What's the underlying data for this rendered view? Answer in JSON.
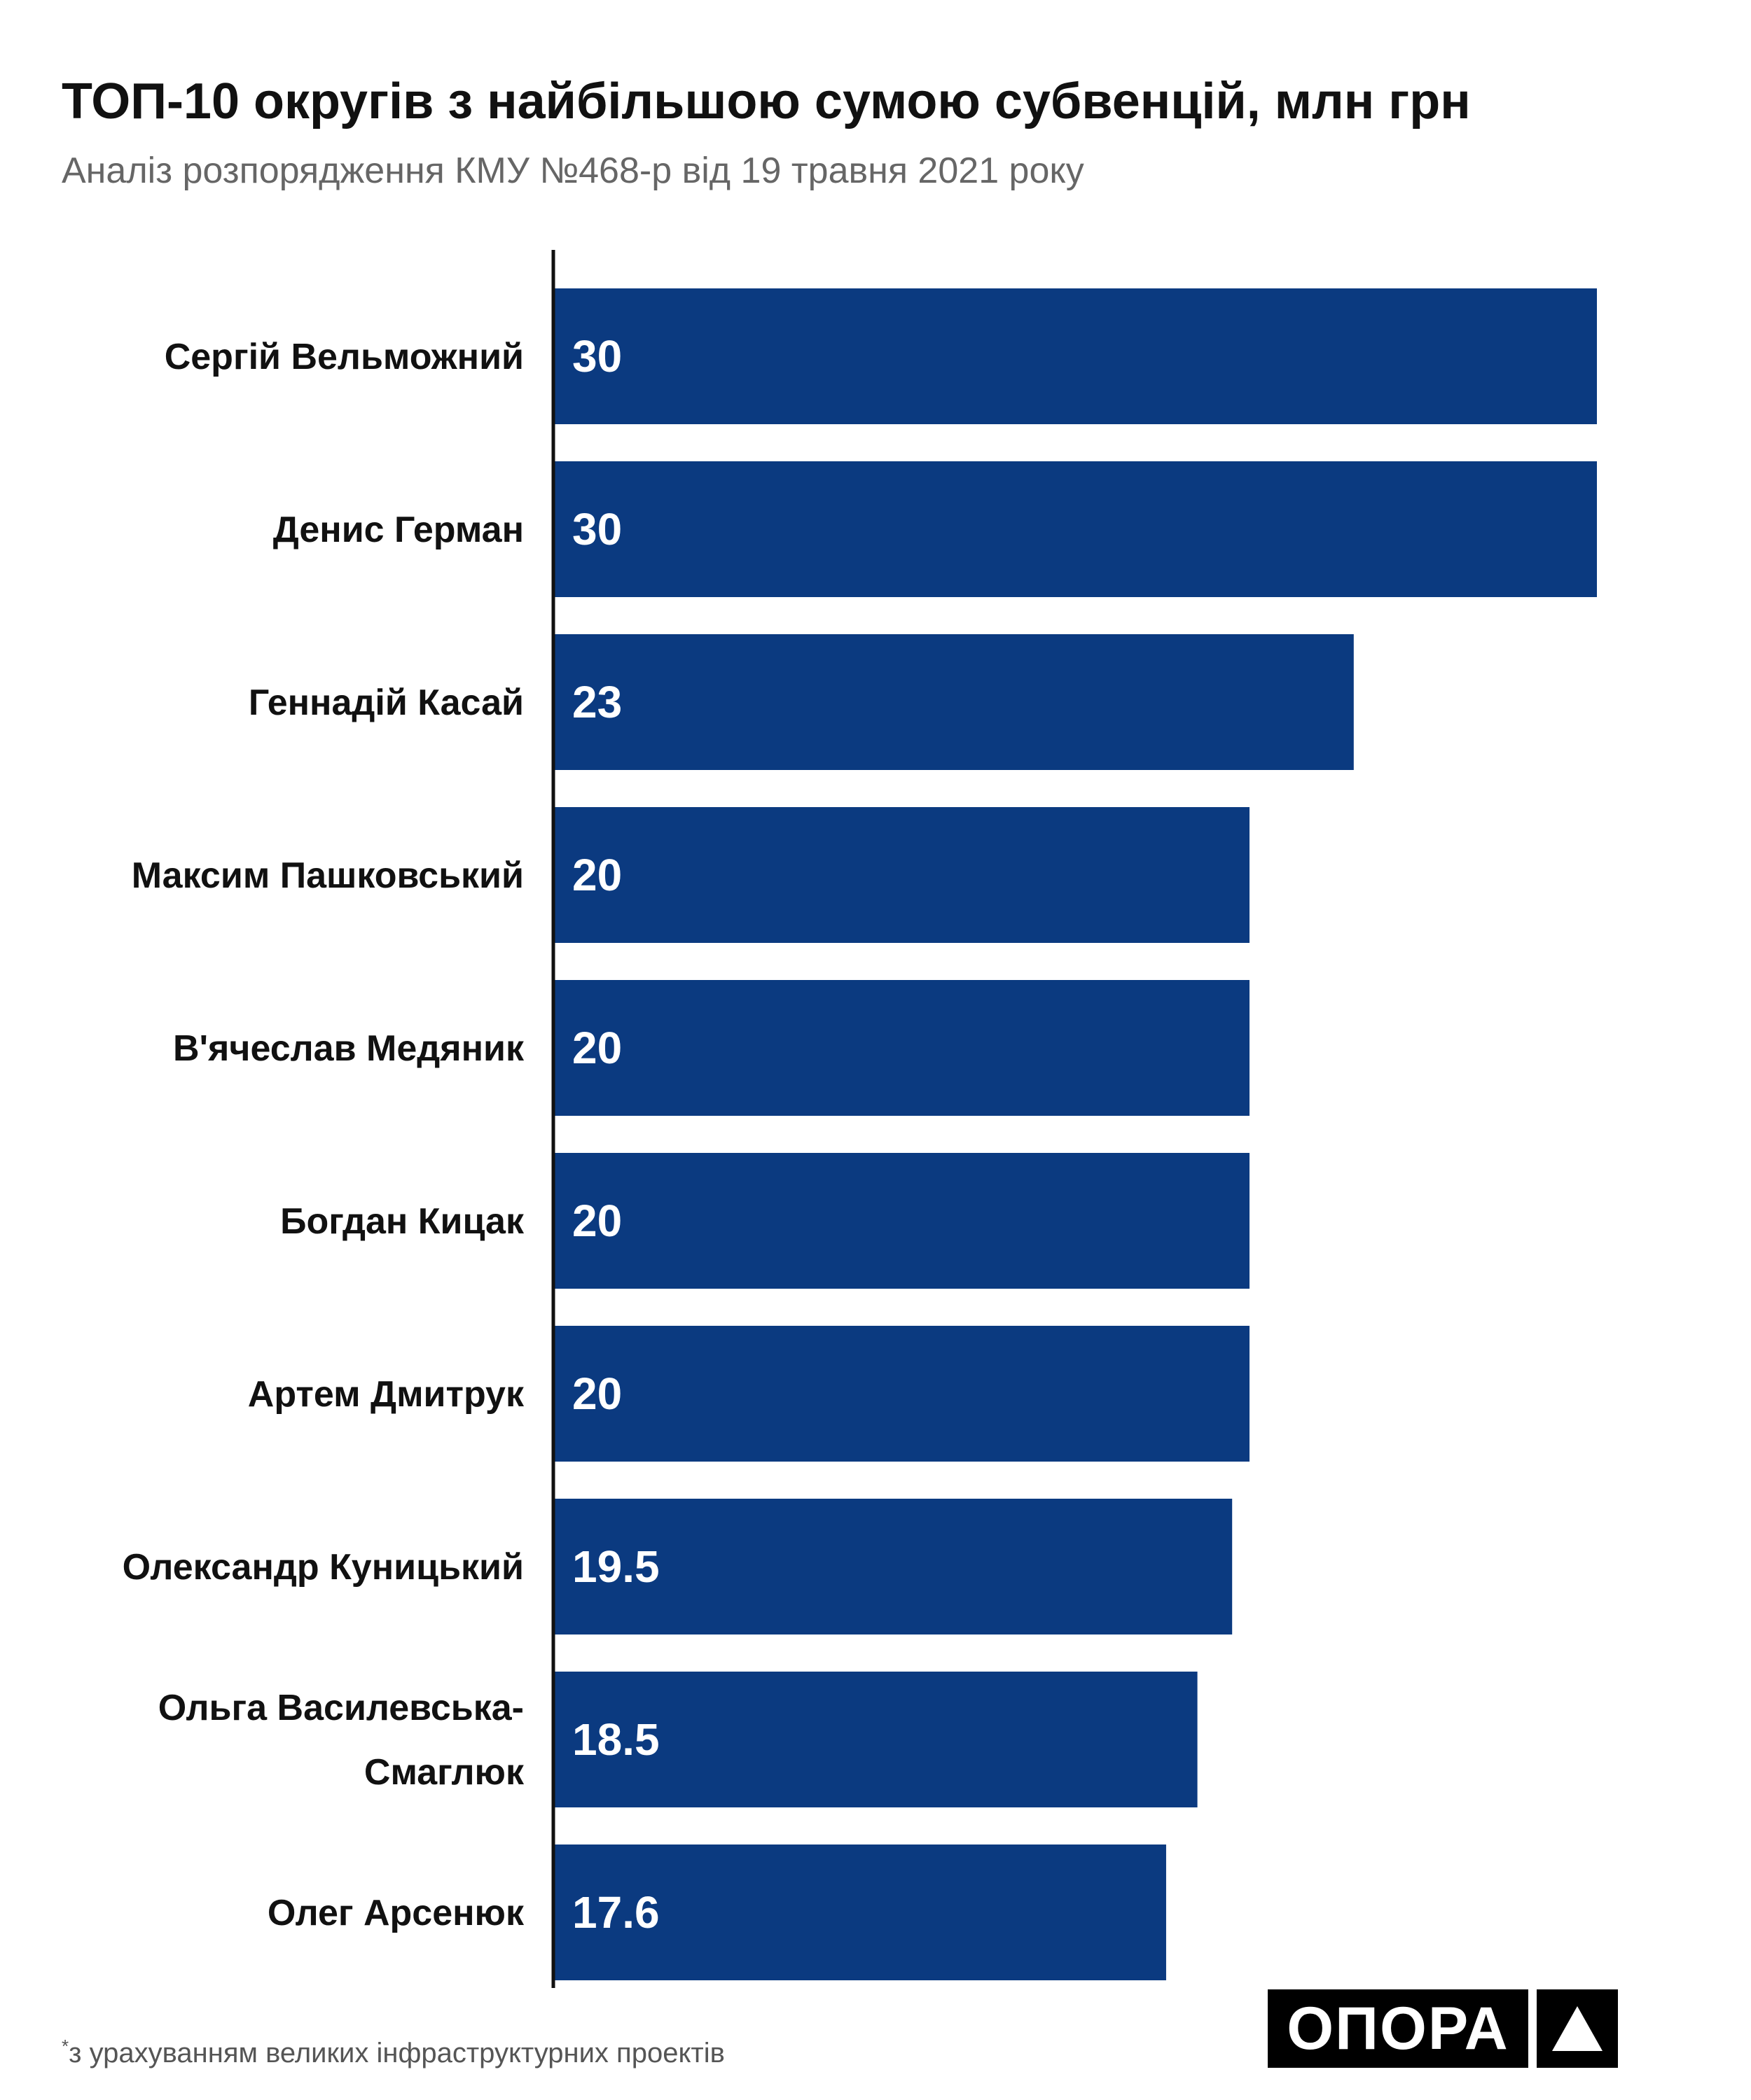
{
  "colors": {
    "bar": "#0b3a80",
    "value_text": "#ffffff",
    "label_text": "#111111",
    "axis": "#111111"
  },
  "chart_data": {
    "type": "bar",
    "orientation": "horizontal",
    "title": "ТОП-10 округів з найбільшою сумою субвенцій, млн грн",
    "subtitle": "Аналіз розпорядження КМУ №468-р від 19 травня 2021 року",
    "categories": [
      "Сергій Вельможний",
      "Денис Герман",
      "Геннадій Касай",
      "Максим Пашковський",
      "В'ячеслав Медяник",
      "Богдан Кицак",
      "Артем Дмитрук",
      "Олександр Куницький",
      "Ольга Василевська-Смаглюк",
      "Олег Арсенюк"
    ],
    "values": [
      30,
      30,
      23,
      20,
      20,
      20,
      20,
      19.5,
      18.5,
      17.6
    ],
    "value_labels": [
      "30",
      "30",
      "23",
      "20",
      "20",
      "20",
      "20",
      "19.5",
      "18.5",
      "17.6"
    ],
    "xlim": [
      0,
      30
    ],
    "grid": false,
    "legend": "none",
    "footnote_marker": "*",
    "footnote": "з урахуванням великих інфраструктурних проектів"
  },
  "brand": {
    "name": "ОПОРА",
    "mark_icon": "triangle-icon"
  }
}
